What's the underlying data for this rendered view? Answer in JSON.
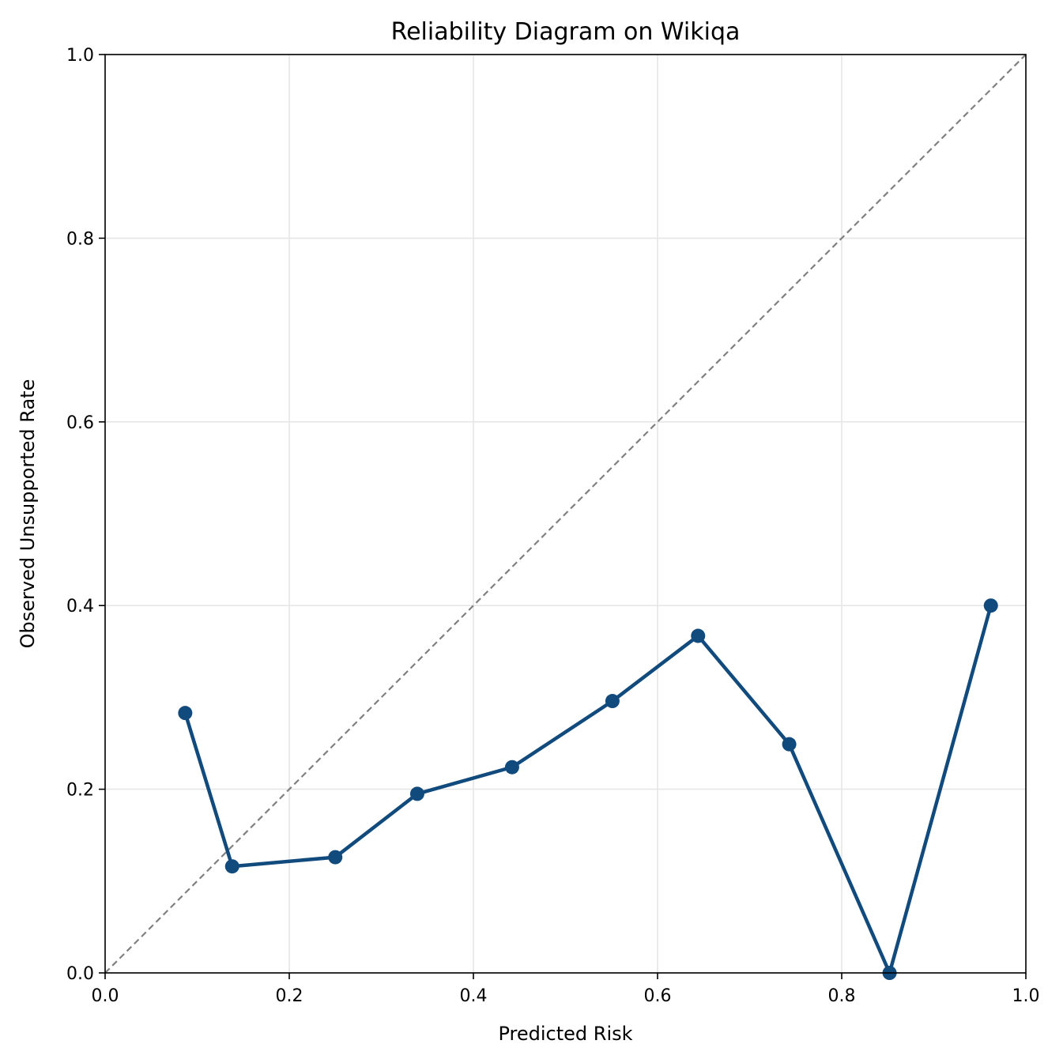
{
  "chart_data": {
    "type": "line",
    "title": "Reliability Diagram on Wikiqa",
    "xlabel": "Predicted Risk",
    "ylabel": "Observed Unsupported Rate",
    "xlim": [
      0.0,
      1.0
    ],
    "ylim": [
      0.0,
      1.0
    ],
    "xticks": [
      "0.0",
      "0.2",
      "0.4",
      "0.6",
      "0.8",
      "1.0"
    ],
    "yticks": [
      "0.0",
      "0.2",
      "0.4",
      "0.6",
      "0.8",
      "1.0"
    ],
    "grid": true,
    "legend": "none",
    "reference_line": {
      "style": "dashed",
      "color": "#808080",
      "x": [
        0.0,
        1.0
      ],
      "y": [
        0.0,
        1.0
      ]
    },
    "series": [
      {
        "color": "#114a7c",
        "marker": "circle",
        "x": [
          0.087,
          0.138,
          0.25,
          0.339,
          0.442,
          0.551,
          0.644,
          0.743,
          0.852,
          0.962
        ],
        "y": [
          0.283,
          0.116,
          0.126,
          0.195,
          0.224,
          0.296,
          0.367,
          0.249,
          0.0,
          0.4
        ]
      }
    ]
  }
}
